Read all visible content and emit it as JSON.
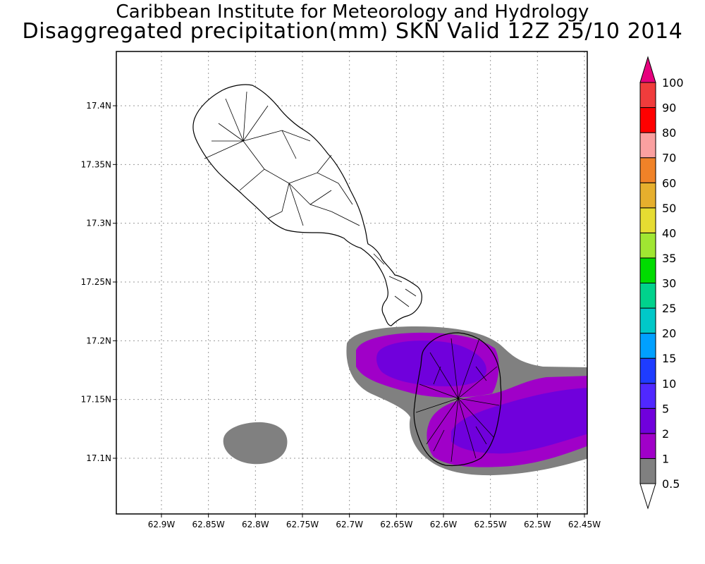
{
  "title_line1": "Caribbean Institute for Meteorology and Hydrology",
  "title_line2": "Disaggregated precipitation(mm) SKN Valid 12Z 25/10 2014",
  "map": {
    "lon_min": -62.95,
    "lon_max": -62.45,
    "lat_min": 17.05,
    "lat_max": 17.445,
    "grid": true,
    "x_ticks": [
      {
        "value": -62.9,
        "label": "62.9W"
      },
      {
        "value": -62.85,
        "label": "62.85W"
      },
      {
        "value": -62.8,
        "label": "62.8W"
      },
      {
        "value": -62.75,
        "label": "62.75W"
      },
      {
        "value": -62.7,
        "label": "62.7W"
      },
      {
        "value": -62.65,
        "label": "62.65W"
      },
      {
        "value": -62.6,
        "label": "62.6W"
      },
      {
        "value": -62.55,
        "label": "62.55W"
      },
      {
        "value": -62.5,
        "label": "62.5W"
      },
      {
        "value": -62.45,
        "label": "62.45W"
      }
    ],
    "y_ticks": [
      {
        "value": 17.4,
        "label": "17.4N"
      },
      {
        "value": 17.35,
        "label": "17.35N"
      },
      {
        "value": 17.3,
        "label": "17.3N"
      },
      {
        "value": 17.25,
        "label": "17.25N"
      },
      {
        "value": 17.2,
        "label": "17.2N"
      },
      {
        "value": 17.15,
        "label": "17.15N"
      },
      {
        "value": 17.1,
        "label": "17.1N"
      }
    ]
  },
  "colorbar": {
    "levels": [
      {
        "label": "0.5",
        "color": "#808080"
      },
      {
        "label": "1",
        "color": "#a000c8"
      },
      {
        "label": "2",
        "color": "#7000dc"
      },
      {
        "label": "5",
        "color": "#5028ff"
      },
      {
        "label": "10",
        "color": "#1e3cff"
      },
      {
        "label": "15",
        "color": "#00a0ff"
      },
      {
        "label": "20",
        "color": "#00c8c8"
      },
      {
        "label": "25",
        "color": "#00d28c"
      },
      {
        "label": "30",
        "color": "#00dc00"
      },
      {
        "label": "35",
        "color": "#a0e632"
      },
      {
        "label": "40",
        "color": "#e6dc32"
      },
      {
        "label": "50",
        "color": "#e6af2d"
      },
      {
        "label": "60",
        "color": "#f08228"
      },
      {
        "label": "70",
        "color": "#faa0a0"
      },
      {
        "label": "80",
        "color": "#ff0000"
      },
      {
        "label": "90",
        "color": "#f03c3c"
      },
      {
        "label": "100",
        "color": "#f00082"
      }
    ],
    "low_arrow_color": "#ffffff",
    "high_arrow_color": "#e6007d"
  },
  "legend_colors": {
    "grey_0_5": "#808080",
    "purple_1": "#a000c8",
    "violet_2": "#7000dc"
  }
}
